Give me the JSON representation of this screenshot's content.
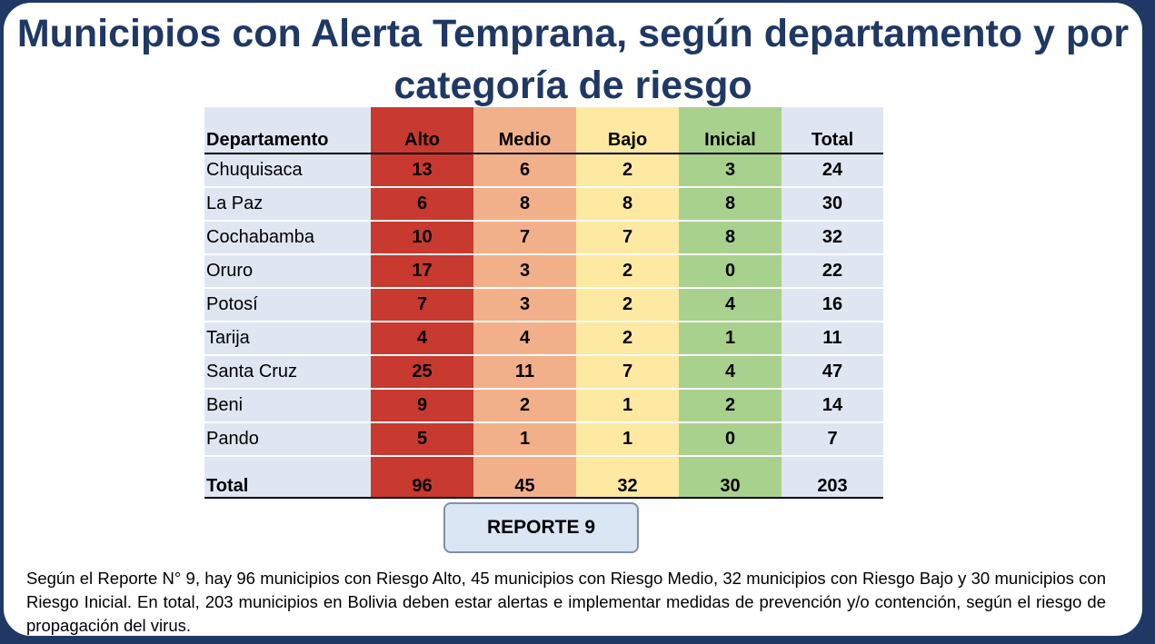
{
  "title": "Municipios con Alerta Temprana, según departamento y por categoría de riesgo",
  "table": {
    "headers": [
      "Departamento",
      "Alto",
      "Medio",
      "Bajo",
      "Inicial",
      "Total"
    ],
    "rows": [
      [
        "Chuquisaca",
        "13",
        "6",
        "2",
        "3",
        "24"
      ],
      [
        "La Paz",
        "6",
        "8",
        "8",
        "8",
        "30"
      ],
      [
        "Cochabamba",
        "10",
        "7",
        "7",
        "8",
        "32"
      ],
      [
        "Oruro",
        "17",
        "3",
        "2",
        "0",
        "22"
      ],
      [
        "Potosí",
        "7",
        "3",
        "2",
        "4",
        "16"
      ],
      [
        "Tarija",
        "4",
        "4",
        "2",
        "1",
        "11"
      ],
      [
        "Santa Cruz",
        "25",
        "11",
        "7",
        "4",
        "47"
      ],
      [
        "Beni",
        "9",
        "2",
        "1",
        "2",
        "14"
      ],
      [
        "Pando",
        "5",
        "1",
        "1",
        "0",
        "7"
      ]
    ],
    "total": [
      "Total",
      "96",
      "45",
      "32",
      "30",
      "203"
    ]
  },
  "report_label": "REPORTE 9",
  "note": "Según el Reporte N° 9, hay 96 municipios con Riesgo Alto, 45 municipios con Riesgo Medio, 32 municipios con Riesgo Bajo y 30 municipios con Riesgo Inicial. En total, 203 municipios en Bolivia deben estar alertas e implementar medidas de prevención y/o contención, según el riesgo de propagación del virus.",
  "colors": {
    "title": "#1f3864",
    "alto": "#c8392f",
    "medio": "#f2b08a",
    "bajo": "#fde9a2",
    "inicial": "#a9d18e",
    "neutral": "#dfe6f2"
  }
}
